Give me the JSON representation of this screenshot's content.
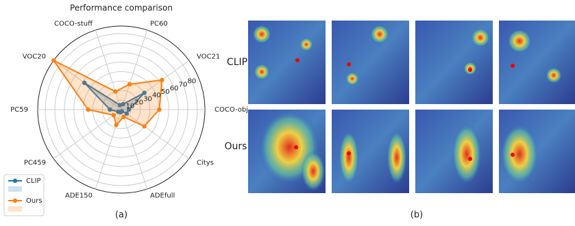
{
  "chart_data": {
    "type": "radar",
    "title": "Performance comparison",
    "categories": [
      "COCO-obj",
      "VOC21",
      "PC60",
      "COCO-stuff",
      "VOC20",
      "PC59",
      "PC459",
      "ADE150",
      "ADEfull",
      "Citys"
    ],
    "series": [
      {
        "name": "CLIP",
        "color": "#1f77b4",
        "values": [
          8,
          30,
          6,
          5,
          48,
          12,
          4,
          3,
          2,
          7
        ]
      },
      {
        "name": "Ours",
        "color": "#ff7f0e",
        "values": [
          40,
          53,
          28,
          20,
          88,
          35,
          10,
          17,
          8,
          30
        ]
      }
    ],
    "ylim": [
      0,
      88
    ],
    "yticks": [
      10,
      20,
      30,
      40,
      50,
      60,
      70,
      80
    ],
    "grid": true,
    "legend": "lower left",
    "caption": "(a)"
  },
  "panel_b": {
    "caption": "(b)",
    "rows": [
      "CLIP",
      "Ours"
    ]
  }
}
